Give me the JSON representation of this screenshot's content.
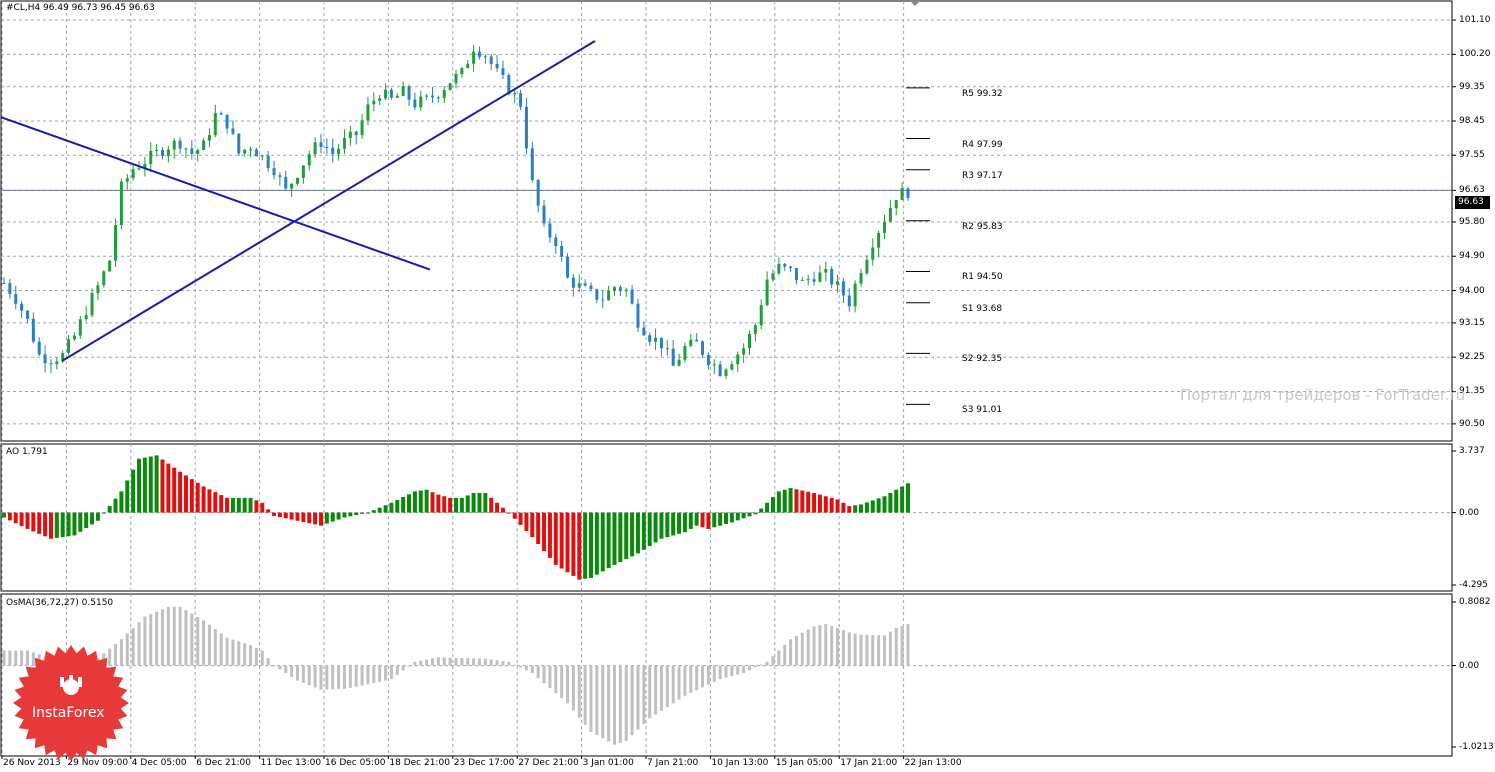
{
  "main_header": "#CL,H4  96.49 96.73 96.45 96.63",
  "ao_header": "AO 1.791",
  "osma_header": "OsMA(36,72,27) 0.5150",
  "current_price": "96.63",
  "watermark": "Портал для трейдеров - ForTrader.ru",
  "logo_text": "InstaForex",
  "colors": {
    "bull": "#1f9e3a",
    "bear": "#2a7fc4",
    "trendline": "#1a1aad",
    "ao_up": "#0a8a0a",
    "ao_down": "#e01010",
    "osma": "#c0c0c0",
    "grid": "#9aa5b8",
    "logo": "#e8393a"
  },
  "price_axis": [
    "101.10",
    "100.20",
    "99.35",
    "98.45",
    "97.55",
    "96.63",
    "95.80",
    "94.90",
    "94.00",
    "93.15",
    "92.25",
    "91.35",
    "90.50"
  ],
  "ao_axis": [
    "3.737",
    "0.00",
    "-4.295"
  ],
  "osma_axis": [
    "0.8082",
    "0.00",
    "-1.0213"
  ],
  "time_axis": [
    "26 Nov 2013",
    "29 Nov 09:00",
    "4 Dec 05:00",
    "6 Dec 21:00",
    "11 Dec 13:00",
    "16 Dec 05:00",
    "18 Dec 21:00",
    "23 Dec 17:00",
    "27 Dec 21:00",
    "3 Jan 01:00",
    "7 Jan 21:00",
    "10 Jan 13:00",
    "15 Jan 05:00",
    "17 Jan 21:00",
    "22 Jan 13:00"
  ],
  "pivots": [
    {
      "label": "R5 99.32",
      "price": 99.32
    },
    {
      "label": "R4 97.99",
      "price": 97.99
    },
    {
      "label": "R3 97.17",
      "price": 97.17
    },
    {
      "label": "R2 95.83",
      "price": 95.83
    },
    {
      "label": "R1 94.50",
      "price": 94.5
    },
    {
      "label": "S1 93.68",
      "price": 93.68
    },
    {
      "label": "S2 92.35",
      "price": 92.35
    },
    {
      "label": "S3 91.01",
      "price": 91.01
    }
  ],
  "price_keypoints": [
    [
      0,
      94.2
    ],
    [
      2,
      93.8
    ],
    [
      4,
      93.2
    ],
    [
      6,
      92.3
    ],
    [
      8,
      92.2
    ],
    [
      10,
      92.3
    ],
    [
      12,
      92.8
    ],
    [
      14,
      93.5
    ],
    [
      16,
      94.1
    ],
    [
      18,
      94.8
    ],
    [
      20,
      96.7
    ],
    [
      22,
      97.2
    ],
    [
      24,
      97.4
    ],
    [
      26,
      97.6
    ],
    [
      28,
      97.8
    ],
    [
      30,
      97.9
    ],
    [
      32,
      97.6
    ],
    [
      34,
      97.8
    ],
    [
      36,
      98.6
    ],
    [
      38,
      98.4
    ],
    [
      40,
      97.6
    ],
    [
      42,
      97.8
    ],
    [
      44,
      97.5
    ],
    [
      46,
      97.2
    ],
    [
      48,
      96.6
    ],
    [
      50,
      97.1
    ],
    [
      52,
      97.6
    ],
    [
      54,
      97.9
    ],
    [
      56,
      97.6
    ],
    [
      58,
      97.9
    ],
    [
      60,
      98.1
    ],
    [
      62,
      98.8
    ],
    [
      64,
      99.2
    ],
    [
      66,
      99.0
    ],
    [
      68,
      99.2
    ],
    [
      70,
      98.9
    ],
    [
      72,
      99.0
    ],
    [
      74,
      99.2
    ],
    [
      76,
      99.5
    ],
    [
      78,
      99.7
    ],
    [
      80,
      100.4
    ],
    [
      82,
      100.2
    ],
    [
      84,
      99.7
    ],
    [
      86,
      99.3
    ],
    [
      88,
      98.9
    ],
    [
      90,
      96.8
    ],
    [
      92,
      95.6
    ],
    [
      94,
      95.3
    ],
    [
      96,
      94.3
    ],
    [
      98,
      94.1
    ],
    [
      100,
      93.9
    ],
    [
      102,
      93.8
    ],
    [
      104,
      94.1
    ],
    [
      106,
      94.0
    ],
    [
      108,
      93.2
    ],
    [
      110,
      92.8
    ],
    [
      112,
      92.6
    ],
    [
      114,
      92.0
    ],
    [
      116,
      92.5
    ],
    [
      118,
      92.6
    ],
    [
      120,
      92.2
    ],
    [
      122,
      91.9
    ],
    [
      124,
      92.2
    ],
    [
      126,
      92.5
    ],
    [
      128,
      93.1
    ],
    [
      130,
      94.3
    ],
    [
      132,
      94.6
    ],
    [
      134,
      94.5
    ],
    [
      136,
      94.2
    ],
    [
      138,
      94.4
    ],
    [
      140,
      94.4
    ],
    [
      142,
      94.1
    ],
    [
      144,
      93.7
    ],
    [
      146,
      94.6
    ],
    [
      148,
      95.3
    ],
    [
      150,
      95.9
    ],
    [
      152,
      96.5
    ],
    [
      154,
      96.6
    ]
  ],
  "ao_keypoints": [
    [
      0,
      -0.3
    ],
    [
      4,
      -1.0
    ],
    [
      8,
      -1.6
    ],
    [
      12,
      -1.4
    ],
    [
      16,
      -0.5
    ],
    [
      20,
      1.3
    ],
    [
      23,
      3.3
    ],
    [
      26,
      3.5
    ],
    [
      30,
      2.5
    ],
    [
      34,
      1.6
    ],
    [
      38,
      0.9
    ],
    [
      42,
      0.9
    ],
    [
      44,
      0.6
    ],
    [
      46,
      -0.2
    ],
    [
      50,
      -0.5
    ],
    [
      54,
      -0.8
    ],
    [
      58,
      -0.3
    ],
    [
      62,
      0.0
    ],
    [
      66,
      0.6
    ],
    [
      70,
      1.3
    ],
    [
      72,
      1.4
    ],
    [
      74,
      1.1
    ],
    [
      76,
      0.9
    ],
    [
      78,
      0.9
    ],
    [
      80,
      1.2
    ],
    [
      82,
      1.2
    ],
    [
      84,
      0.6
    ],
    [
      86,
      0.0
    ],
    [
      90,
      -1.5
    ],
    [
      94,
      -3.2
    ],
    [
      98,
      -4.1
    ],
    [
      100,
      -4.0
    ],
    [
      104,
      -3.2
    ],
    [
      108,
      -2.5
    ],
    [
      112,
      -1.6
    ],
    [
      116,
      -1.2
    ],
    [
      118,
      -0.8
    ],
    [
      120,
      -1.0
    ],
    [
      124,
      -0.6
    ],
    [
      128,
      -0.1
    ],
    [
      132,
      1.3
    ],
    [
      134,
      1.5
    ],
    [
      138,
      1.2
    ],
    [
      142,
      0.8
    ],
    [
      144,
      0.4
    ],
    [
      146,
      0.5
    ],
    [
      150,
      1.0
    ],
    [
      152,
      1.4
    ],
    [
      154,
      1.8
    ]
  ],
  "osma_keypoints": [
    [
      0,
      0.2
    ],
    [
      4,
      0.2
    ],
    [
      8,
      0.1
    ],
    [
      12,
      0.0
    ],
    [
      16,
      0.1
    ],
    [
      20,
      0.35
    ],
    [
      24,
      0.65
    ],
    [
      28,
      0.78
    ],
    [
      30,
      0.78
    ],
    [
      34,
      0.6
    ],
    [
      38,
      0.37
    ],
    [
      42,
      0.27
    ],
    [
      44,
      0.2
    ],
    [
      46,
      0.0
    ],
    [
      50,
      -0.2
    ],
    [
      54,
      -0.32
    ],
    [
      58,
      -0.31
    ],
    [
      62,
      -0.25
    ],
    [
      66,
      -0.18
    ],
    [
      70,
      0.05
    ],
    [
      74,
      0.11
    ],
    [
      78,
      0.1
    ],
    [
      82,
      0.09
    ],
    [
      86,
      0.05
    ],
    [
      90,
      -0.1
    ],
    [
      96,
      -0.5
    ],
    [
      100,
      -0.88
    ],
    [
      104,
      -1.05
    ],
    [
      106,
      -1.0
    ],
    [
      110,
      -0.7
    ],
    [
      116,
      -0.4
    ],
    [
      122,
      -0.18
    ],
    [
      126,
      -0.1
    ],
    [
      130,
      0.05
    ],
    [
      134,
      0.35
    ],
    [
      138,
      0.52
    ],
    [
      140,
      0.55
    ],
    [
      142,
      0.5
    ],
    [
      144,
      0.44
    ],
    [
      146,
      0.41
    ],
    [
      150,
      0.4
    ],
    [
      152,
      0.5
    ],
    [
      154,
      0.55
    ]
  ]
}
